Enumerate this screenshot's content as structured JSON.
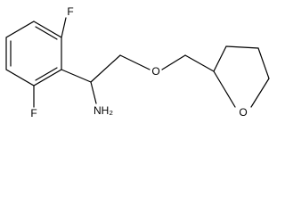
{
  "atoms": {
    "fluorine_top": "F",
    "fluorine_bottom": "F",
    "amine": "NH₂",
    "ether_oxygen": "O",
    "ring_oxygen": "O"
  }
}
